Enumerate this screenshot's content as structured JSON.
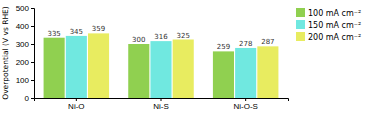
{
  "chart_data": {
    "type": "bar",
    "categories": [
      "Ni-O",
      "Ni-S",
      "Ni-O-S"
    ],
    "series": [
      {
        "name": "100 mA cm⁻²",
        "color": "#90d050",
        "values": [
          335,
          300,
          259
        ]
      },
      {
        "name": "150 mA cm⁻²",
        "color": "#70e8e0",
        "values": [
          345,
          316,
          278
        ]
      },
      {
        "name": "200 mA cm⁻²",
        "color": "#e8ec60",
        "values": [
          359,
          325,
          287
        ]
      }
    ],
    "ylabel": "Overpotential (V vs RHE)",
    "ylim": [
      0,
      500
    ],
    "yticks": [
      0,
      100,
      200,
      300,
      400,
      500
    ],
    "data_labels": true,
    "legend": "right",
    "grid": false
  }
}
